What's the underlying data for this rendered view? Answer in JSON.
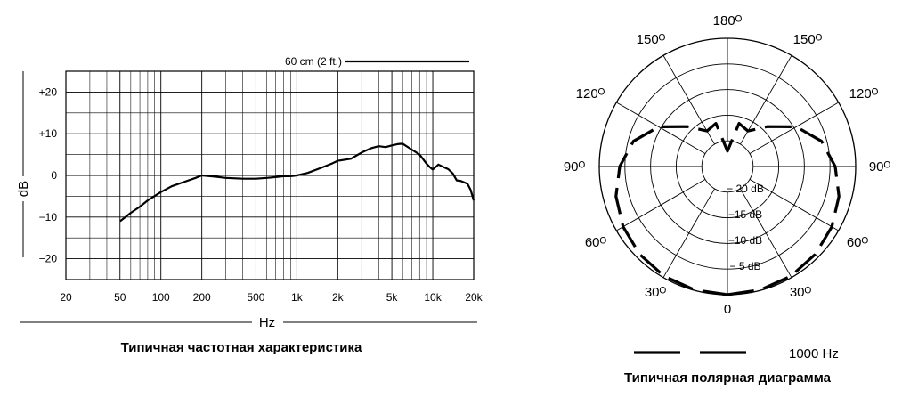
{
  "chart_data": [
    {
      "type": "line",
      "caption": "Типичная частотная характеристика",
      "xlabel": "Hz",
      "ylabel": "dB",
      "x_scale": "log",
      "xlim": [
        20,
        20000
      ],
      "ylim": [
        -25,
        25
      ],
      "x_tick_labels": [
        "20",
        "50",
        "100",
        "200",
        "500",
        "1k",
        "2k",
        "5k",
        "10k",
        "20k"
      ],
      "y_tick_labels": [
        "+20",
        "+10",
        "0",
        "−10",
        "−20"
      ],
      "grid": true,
      "legend": {
        "label": "60 cm (2 ft.)",
        "position": "top-right"
      },
      "series": [
        {
          "name": "60 cm (2 ft.)",
          "x": [
            50,
            60,
            70,
            80,
            100,
            120,
            150,
            180,
            200,
            250,
            300,
            400,
            500,
            600,
            700,
            800,
            900,
            1000,
            1200,
            1500,
            1800,
            2000,
            2500,
            3000,
            3500,
            4000,
            4500,
            5000,
            5500,
            6000,
            7000,
            8000,
            9000,
            9500,
            10000,
            11000,
            12000,
            13000,
            14000,
            15000,
            16000,
            18000,
            19000,
            20000
          ],
          "y": [
            -11,
            -9,
            -7.5,
            -6,
            -4,
            -2.6,
            -1.5,
            -0.6,
            0,
            -0.3,
            -0.6,
            -0.8,
            -0.8,
            -0.6,
            -0.4,
            -0.2,
            -0.2,
            0,
            0.6,
            1.8,
            2.8,
            3.5,
            4,
            5.5,
            6.5,
            7,
            6.8,
            7.2,
            7.5,
            7.6,
            6.2,
            5,
            2.8,
            2,
            1.4,
            2.6,
            2,
            1.5,
            0.5,
            -1.2,
            -1.3,
            -2,
            -3.5,
            -6
          ]
        }
      ]
    },
    {
      "type": "polar",
      "caption": "Типичная полярная диаграмма",
      "angle_labels": [
        "0",
        "30ᴼ",
        "60ᴼ",
        "90ᴼ",
        "120ᴼ",
        "150ᴼ",
        "180ᴼ"
      ],
      "angle_values": [
        0,
        30,
        60,
        90,
        120,
        150,
        180
      ],
      "ring_labels": [
        "− 5 dB",
        "−10 dB",
        "−15 dB",
        "− 20 dB"
      ],
      "ring_values": [
        -5,
        -10,
        -15,
        -20
      ],
      "series": [
        {
          "name": "1000 Hz",
          "style": "dashed",
          "angles": [
            0,
            15,
            30,
            45,
            60,
            75,
            90,
            105,
            120,
            135,
            150,
            165,
            180
          ],
          "db": [
            0,
            -0.1,
            -0.3,
            -0.8,
            -1.5,
            -2.5,
            -4,
            -6,
            -9.5,
            -14,
            -17,
            -16.3,
            -22
          ]
        }
      ],
      "legend": {
        "label": "1000 Hz",
        "position": "bottom"
      }
    }
  ]
}
